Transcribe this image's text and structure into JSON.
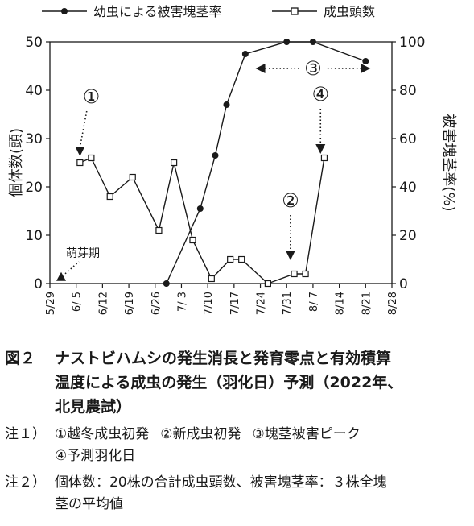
{
  "chart_data": {
    "type": "line",
    "legend": {
      "placement": "top",
      "entries": [
        "幼虫による被害塊茎率",
        "成虫頭数"
      ]
    },
    "y_left": {
      "label": "個体数(頭)",
      "range": [
        0,
        50
      ],
      "ticks": [
        "0",
        "10",
        "20",
        "30",
        "40",
        "50"
      ]
    },
    "y_right": {
      "label": "被害塊茎率(%)",
      "range": [
        0,
        100
      ],
      "ticks": [
        "0",
        "20",
        "40",
        "60",
        "80",
        "100"
      ]
    },
    "x_ticks": [
      "5/29",
      "6/ 5",
      "6/12",
      "6/19",
      "6/26",
      "7/ 3",
      "7/10",
      "7/17",
      "7/24",
      "7/31",
      "8/ 7",
      "8/14",
      "8/21",
      "8/28"
    ],
    "x_range": [
      "5/29",
      "8/28"
    ],
    "series": [
      {
        "name": "幼虫による被害塊茎率",
        "axis": "right",
        "marker": "filled-circle",
        "x": [
          "6/29",
          "7/8",
          "7/12",
          "7/15",
          "7/20",
          "7/31",
          "8/7",
          "8/21"
        ],
        "y": [
          0,
          31,
          53,
          74,
          95,
          100,
          100,
          92
        ]
      },
      {
        "name": "成虫頭数",
        "axis": "left",
        "marker": "open-square",
        "x": [
          "6/6",
          "6/9",
          "6/14",
          "6/20",
          "6/27",
          "7/1",
          "7/6",
          "7/11",
          "7/16",
          "7/19",
          "7/26",
          "8/2",
          "8/5",
          "8/10"
        ],
        "y": [
          25,
          26,
          18,
          22,
          11,
          25,
          9,
          1,
          5,
          5,
          0,
          2,
          2,
          26
        ]
      }
    ],
    "annotations": [
      {
        "label": "①",
        "x": "6/6",
        "y_left": 25,
        "kind": "dotted-arrow-down"
      },
      {
        "label": "②",
        "x": "8/1",
        "y_left": 3.5,
        "kind": "dotted-arrow-down"
      },
      {
        "label": "③",
        "x": "8/7",
        "y_left": 44.5,
        "kind": "dotted-double-arrow",
        "x_from": "7/24",
        "x_to": "8/21"
      },
      {
        "label": "④",
        "x": "8/9",
        "y_left": 25.5,
        "kind": "dotted-arrow-down"
      },
      {
        "label": "萌芽期",
        "x": "6/1",
        "y_left": 1.2,
        "kind": "filled-triangle"
      }
    ]
  },
  "caption": {
    "fig_label": "図２",
    "fig_lines": [
      "ナストビハムシの発生消長と発育零点と有効積算",
      "温度による成虫の発生（羽化日）予測（2022年、",
      "北見農試）"
    ],
    "note1_label": "注１）",
    "note1_items": [
      "①越冬成虫初発",
      "②新成虫初発",
      "③塊茎被害ピーク",
      "④予測羽化日"
    ],
    "note2_label": "注２）",
    "note2_lines": [
      "個体数：20株の合計成虫頭数、被害塊茎率：３株全塊",
      "茎の平均値"
    ]
  }
}
